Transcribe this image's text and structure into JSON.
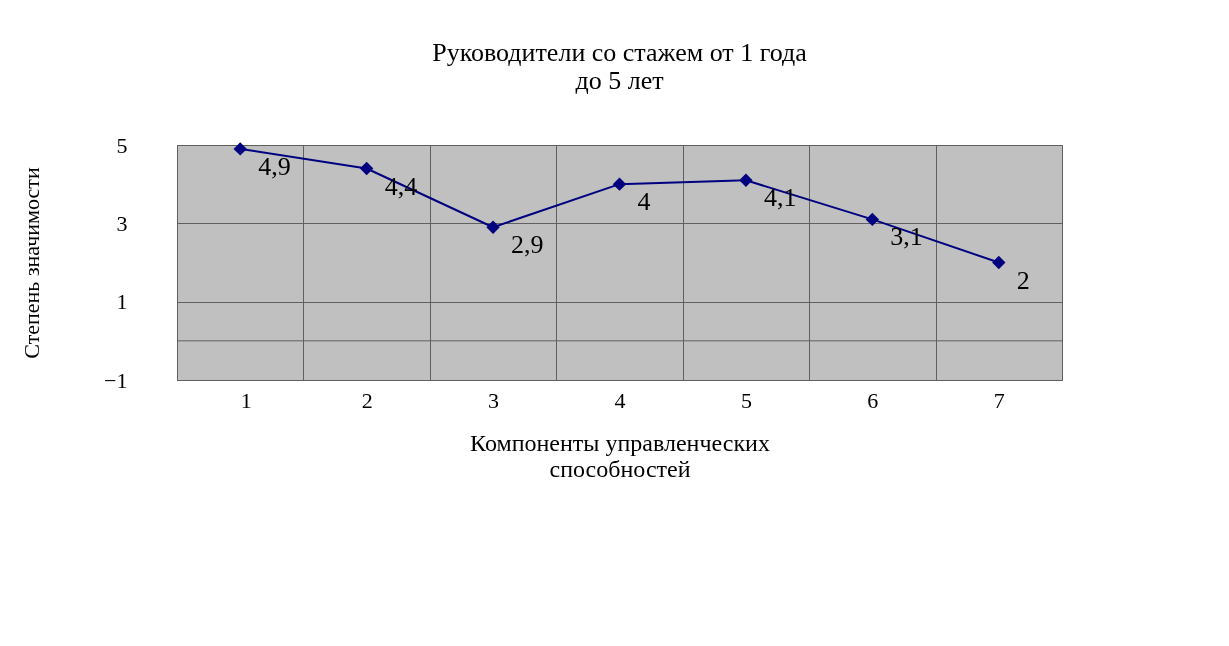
{
  "chart_data": {
    "type": "line",
    "title": "Руководители со стажем от 1 года до 5 лет",
    "xlabel": "Компоненты управленческих способностей",
    "ylabel": "Степень значимости",
    "categories": [
      "1",
      "2",
      "3",
      "4",
      "5",
      "6",
      "7"
    ],
    "series": [
      {
        "color": "#000080",
        "values": [
          4.9,
          4.4,
          2.9,
          4,
          4.1,
          3.1,
          2
        ],
        "value_labels": [
          "4,9",
          "4,4",
          "2,9",
          "4",
          "4,1",
          "3,1",
          "2"
        ]
      }
    ],
    "ylim": [
      -1,
      5
    ],
    "yticks": [
      -1,
      1,
      3,
      5
    ],
    "ref_lines": [
      {
        "axis": "y",
        "value": 0
      }
    ],
    "grid": true,
    "marker": "diamond",
    "line_style": "solid"
  }
}
